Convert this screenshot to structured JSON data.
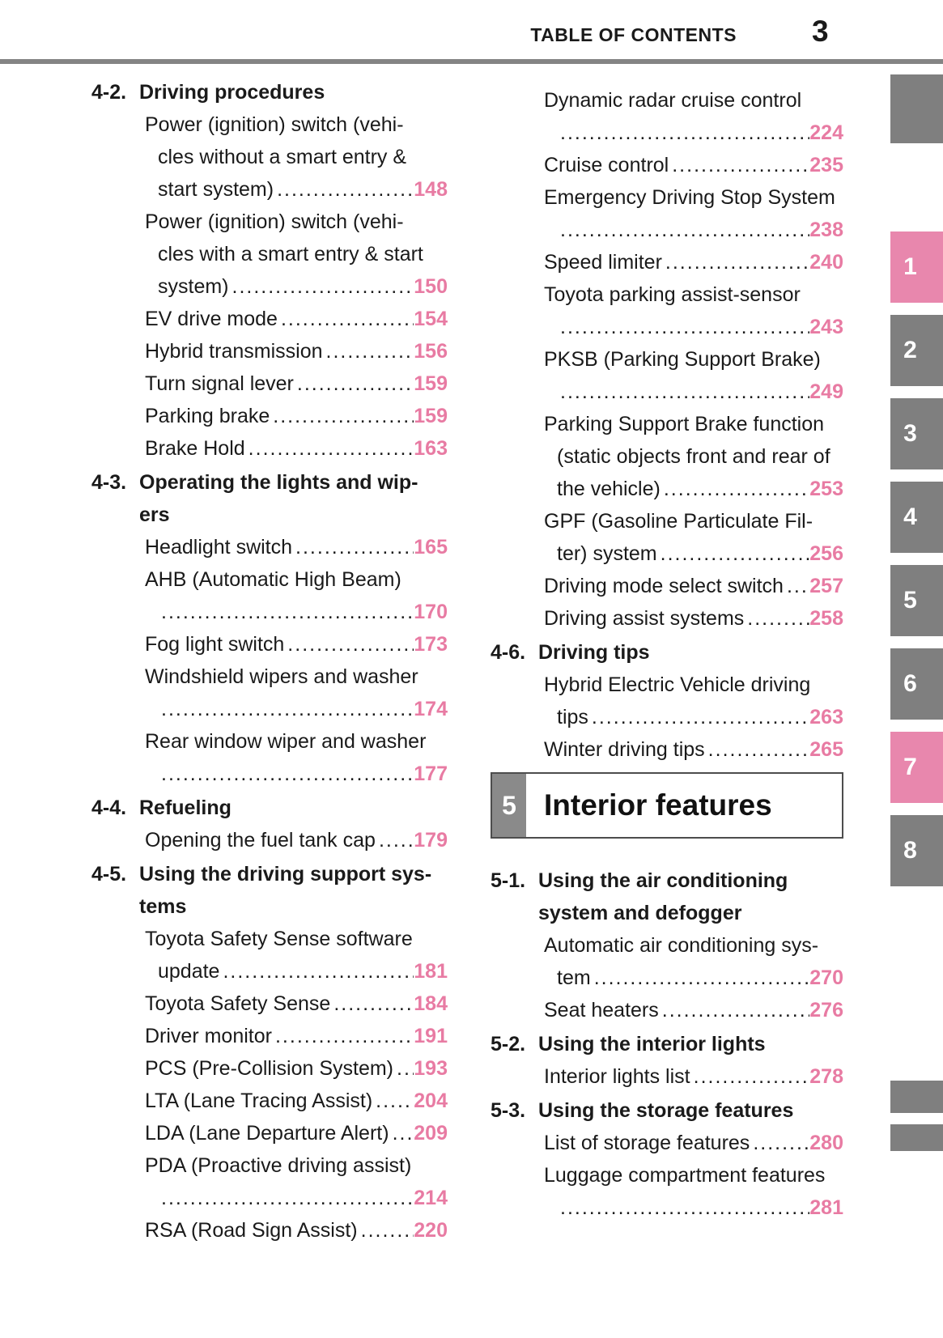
{
  "header": {
    "title": "TABLE OF CONTENTS",
    "page_number": "3"
  },
  "colors": {
    "link_pink": "#e87ba3",
    "tab_pink": "#e887ad",
    "tab_gray": "#7f7f7f",
    "rule_gray": "#848484"
  },
  "toc": {
    "left": [
      {
        "type": "section",
        "label": "4-2.",
        "title_lines": [
          "Driving procedures"
        ]
      },
      {
        "type": "entry",
        "lines": [
          "Power (ignition) switch (vehi-",
          "cles without a smart entry &"
        ],
        "last": "start system)",
        "page": "148"
      },
      {
        "type": "entry",
        "lines": [
          "Power (ignition) switch (vehi-",
          "cles with a smart entry & start"
        ],
        "last": "system)",
        "page": "150"
      },
      {
        "type": "entry",
        "lines": [],
        "last": "EV drive mode",
        "page": "154"
      },
      {
        "type": "entry",
        "lines": [],
        "last": "Hybrid transmission",
        "page": "156"
      },
      {
        "type": "entry",
        "lines": [],
        "last": "Turn signal lever",
        "page": "159"
      },
      {
        "type": "entry",
        "lines": [],
        "last": "Parking brake",
        "page": "159"
      },
      {
        "type": "entry",
        "lines": [],
        "last": "Brake Hold",
        "page": "163"
      },
      {
        "type": "section",
        "label": "4-3.",
        "title_lines": [
          "Operating the lights and wip-",
          "ers"
        ]
      },
      {
        "type": "entry",
        "lines": [],
        "last": "Headlight switch",
        "page": "165"
      },
      {
        "type": "entry",
        "lines": [
          "AHB (Automatic High Beam)"
        ],
        "last": "",
        "page": "170"
      },
      {
        "type": "entry",
        "lines": [],
        "last": "Fog light switch",
        "page": "173"
      },
      {
        "type": "entry",
        "lines": [
          "Windshield wipers and washer"
        ],
        "last": "",
        "page": "174"
      },
      {
        "type": "entry",
        "lines": [
          "Rear window wiper and washer"
        ],
        "last": "",
        "page": "177"
      },
      {
        "type": "section",
        "label": "4-4.",
        "title_lines": [
          "Refueling"
        ]
      },
      {
        "type": "entry",
        "lines": [],
        "last": "Opening the fuel tank cap",
        "page": "179"
      },
      {
        "type": "section",
        "label": "4-5.",
        "title_lines": [
          "Using the driving support sys-",
          "tems"
        ]
      },
      {
        "type": "entry",
        "lines": [
          "Toyota Safety Sense software"
        ],
        "last": "update",
        "page": "181"
      },
      {
        "type": "entry",
        "lines": [],
        "last": "Toyota Safety Sense",
        "page": "184"
      },
      {
        "type": "entry",
        "lines": [],
        "last": "Driver monitor",
        "page": "191"
      },
      {
        "type": "entry",
        "lines": [],
        "last": "PCS (Pre-Collision System)",
        "page": "193"
      },
      {
        "type": "entry",
        "lines": [],
        "last": "LTA (Lane Tracing Assist)",
        "page": "204"
      },
      {
        "type": "entry",
        "lines": [],
        "last": "LDA (Lane Departure Alert)",
        "page": "209"
      },
      {
        "type": "entry",
        "lines": [
          "PDA (Proactive driving assist)"
        ],
        "last": "",
        "page": "214"
      },
      {
        "type": "entry",
        "lines": [],
        "last": "RSA (Road Sign Assist)",
        "page": "220"
      }
    ],
    "right": [
      {
        "type": "entry",
        "lines": [
          "Dynamic radar cruise control"
        ],
        "last": "",
        "page": "224"
      },
      {
        "type": "entry",
        "lines": [],
        "last": "Cruise control",
        "page": "235"
      },
      {
        "type": "entry",
        "lines": [
          "Emergency Driving Stop System"
        ],
        "last": "",
        "page": "238"
      },
      {
        "type": "entry",
        "lines": [],
        "last": "Speed limiter",
        "page": "240"
      },
      {
        "type": "entry",
        "lines": [
          "Toyota parking assist-sensor"
        ],
        "last": "",
        "page": "243"
      },
      {
        "type": "entry",
        "lines": [
          "PKSB (Parking Support Brake)"
        ],
        "last": "",
        "page": "249"
      },
      {
        "type": "entry",
        "lines": [
          "Parking Support Brake function",
          "(static objects front and rear of"
        ],
        "last": "the vehicle)",
        "page": "253"
      },
      {
        "type": "entry",
        "lines": [
          "GPF (Gasoline Particulate Fil-"
        ],
        "last": "ter) system",
        "page": "256"
      },
      {
        "type": "entry",
        "lines": [],
        "last": "Driving mode select switch",
        "page": "257"
      },
      {
        "type": "entry",
        "lines": [],
        "last": "Driving assist systems",
        "page": "258"
      },
      {
        "type": "section",
        "label": "4-6.",
        "title_lines": [
          "Driving tips"
        ]
      },
      {
        "type": "entry",
        "lines": [
          "Hybrid Electric Vehicle driving"
        ],
        "last": "tips",
        "page": "263"
      },
      {
        "type": "entry",
        "lines": [],
        "last": "Winter driving tips",
        "page": "265"
      },
      {
        "type": "chapter",
        "num": "5",
        "title": "Interior features"
      },
      {
        "type": "section",
        "label": "5-1.",
        "title_lines": [
          "Using the air conditioning",
          "system and defogger"
        ]
      },
      {
        "type": "entry",
        "lines": [
          "Automatic air conditioning sys-"
        ],
        "last": "tem",
        "page": "270"
      },
      {
        "type": "entry",
        "lines": [],
        "last": "Seat heaters",
        "page": "276"
      },
      {
        "type": "section",
        "label": "5-2.",
        "title_lines": [
          "Using the interior lights"
        ]
      },
      {
        "type": "entry",
        "lines": [],
        "last": "Interior lights list",
        "page": "278"
      },
      {
        "type": "section",
        "label": "5-3.",
        "title_lines": [
          "Using the storage features"
        ]
      },
      {
        "type": "entry",
        "lines": [],
        "last": "List of storage features",
        "page": "280"
      },
      {
        "type": "entry",
        "lines": [
          "Luggage compartment features"
        ],
        "last": "",
        "page": "281"
      }
    ]
  },
  "tabs": {
    "items": [
      {
        "label": "",
        "pink": false
      },
      {
        "label": "1",
        "pink": true
      },
      {
        "label": "2",
        "pink": false
      },
      {
        "label": "3",
        "pink": false
      },
      {
        "label": "4",
        "pink": false
      },
      {
        "label": "5",
        "pink": false
      },
      {
        "label": "6",
        "pink": false
      },
      {
        "label": "7",
        "pink": true
      },
      {
        "label": "8",
        "pink": false
      }
    ],
    "bottom_boxes": [
      {
        "label": ""
      },
      {
        "label": ""
      }
    ]
  }
}
